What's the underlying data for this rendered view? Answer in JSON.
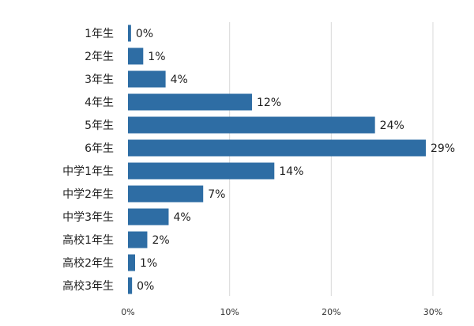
{
  "chart_data": {
    "type": "bar",
    "orientation": "horizontal",
    "categories": [
      "1年生",
      "2年生",
      "3年生",
      "4年生",
      "5年生",
      "6年生",
      "中学1年生",
      "中学2年生",
      "中学3年生",
      "高校1年生",
      "高校2年生",
      "高校3年生"
    ],
    "values": [
      0.3,
      1.5,
      3.7,
      12.2,
      24.3,
      29.3,
      14.4,
      7.4,
      4.0,
      1.9,
      0.7,
      0.4
    ],
    "value_labels": [
      "0%",
      "1%",
      "4%",
      "12%",
      "24%",
      "29%",
      "14%",
      "7%",
      "4%",
      "2%",
      "1%",
      "0%"
    ],
    "x_ticks": [
      0,
      10,
      20,
      30
    ],
    "x_tick_labels": [
      "0%",
      "10%",
      "20%",
      "30%"
    ],
    "xlim": [
      0,
      30
    ],
    "grid": true,
    "bar_color": "#2e6da4",
    "grid_color": "#d9d9d9",
    "title": "",
    "xlabel": "",
    "ylabel": ""
  }
}
